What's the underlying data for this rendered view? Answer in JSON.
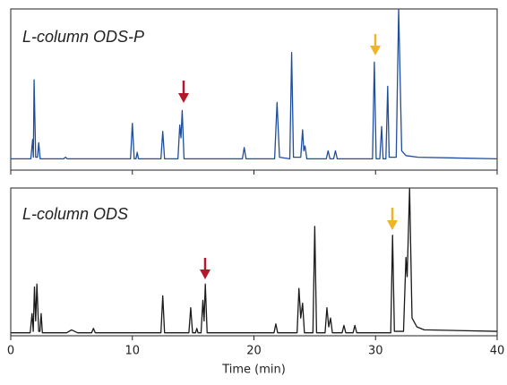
{
  "chart_data": [
    {
      "type": "line",
      "title": "L-column ODS-P",
      "color": "#1f4e9c",
      "xlim": [
        0,
        40
      ],
      "ylim": [
        0,
        100
      ],
      "x": [
        0,
        1.65,
        1.8,
        1.86,
        1.92,
        2.05,
        2.2,
        2.3,
        2.42,
        4.35,
        4.5,
        4.65,
        9.85,
        10.0,
        10.15,
        10.3,
        10.4,
        10.5,
        12.35,
        12.5,
        12.65,
        13.75,
        13.9,
        14.0,
        14.1,
        14.25,
        19.05,
        19.2,
        19.35,
        21.7,
        21.9,
        22.1,
        22.95,
        23.1,
        23.25,
        23.85,
        24.0,
        24.1,
        24.2,
        24.35,
        25.95,
        26.1,
        26.25,
        26.55,
        26.7,
        26.85,
        29.75,
        29.9,
        30.05,
        30.35,
        30.5,
        30.62,
        30.85,
        31.0,
        31.12,
        31.7,
        31.9,
        32.15,
        32.5,
        33.5,
        40
      ],
      "values": [
        7,
        7,
        19,
        8,
        56,
        8,
        8,
        17,
        7,
        7,
        8,
        7,
        7,
        29,
        7,
        7,
        11,
        7,
        7,
        24,
        7,
        7,
        28,
        20,
        37,
        7,
        7,
        14,
        7,
        7,
        42,
        8,
        7,
        73,
        8,
        8,
        25,
        12,
        15,
        7,
        7,
        12,
        7,
        7,
        12,
        7,
        7,
        67,
        7,
        7,
        27,
        7,
        7,
        52,
        8,
        8,
        100,
        12,
        9,
        8,
        7
      ]
    },
    {
      "type": "line",
      "title": "L-column ODS",
      "color": "#1a1a1a",
      "xlim": [
        0,
        40
      ],
      "ylim": [
        0,
        100
      ],
      "xticks": [
        0,
        10,
        20,
        30,
        40
      ],
      "xlabel": "Time (min)",
      "x": [
        0,
        1.6,
        1.75,
        1.85,
        1.95,
        2.05,
        2.15,
        2.3,
        2.4,
        2.5,
        2.6,
        4.6,
        5.0,
        5.5,
        6.65,
        6.8,
        6.95,
        12.35,
        12.5,
        12.65,
        14.65,
        14.8,
        14.95,
        15.2,
        15.3,
        15.4,
        15.65,
        15.8,
        15.9,
        16.0,
        16.15,
        21.65,
        21.8,
        21.95,
        23.55,
        23.7,
        23.85,
        24.0,
        24.15,
        24.85,
        25.0,
        25.15,
        25.85,
        26.0,
        26.15,
        26.3,
        26.45,
        27.25,
        27.4,
        27.55,
        28.15,
        28.3,
        28.45,
        31.25,
        31.4,
        31.55,
        32.3,
        32.5,
        32.6,
        32.8,
        33.0,
        33.4,
        34,
        40
      ],
      "values": [
        2,
        2,
        15,
        3,
        33,
        10,
        35,
        3,
        3,
        15,
        2,
        2,
        4,
        2,
        2,
        5,
        2,
        2,
        27,
        2,
        2,
        19,
        2,
        2,
        5,
        2,
        2,
        24,
        10,
        35,
        2,
        2,
        8,
        2,
        2,
        32,
        12,
        22,
        2,
        2,
        74,
        2,
        2,
        19,
        6,
        12,
        2,
        2,
        7,
        2,
        2,
        7,
        2,
        2,
        68,
        3,
        3,
        53,
        40,
        100,
        12,
        6,
        4,
        3
      ]
    }
  ]
}
